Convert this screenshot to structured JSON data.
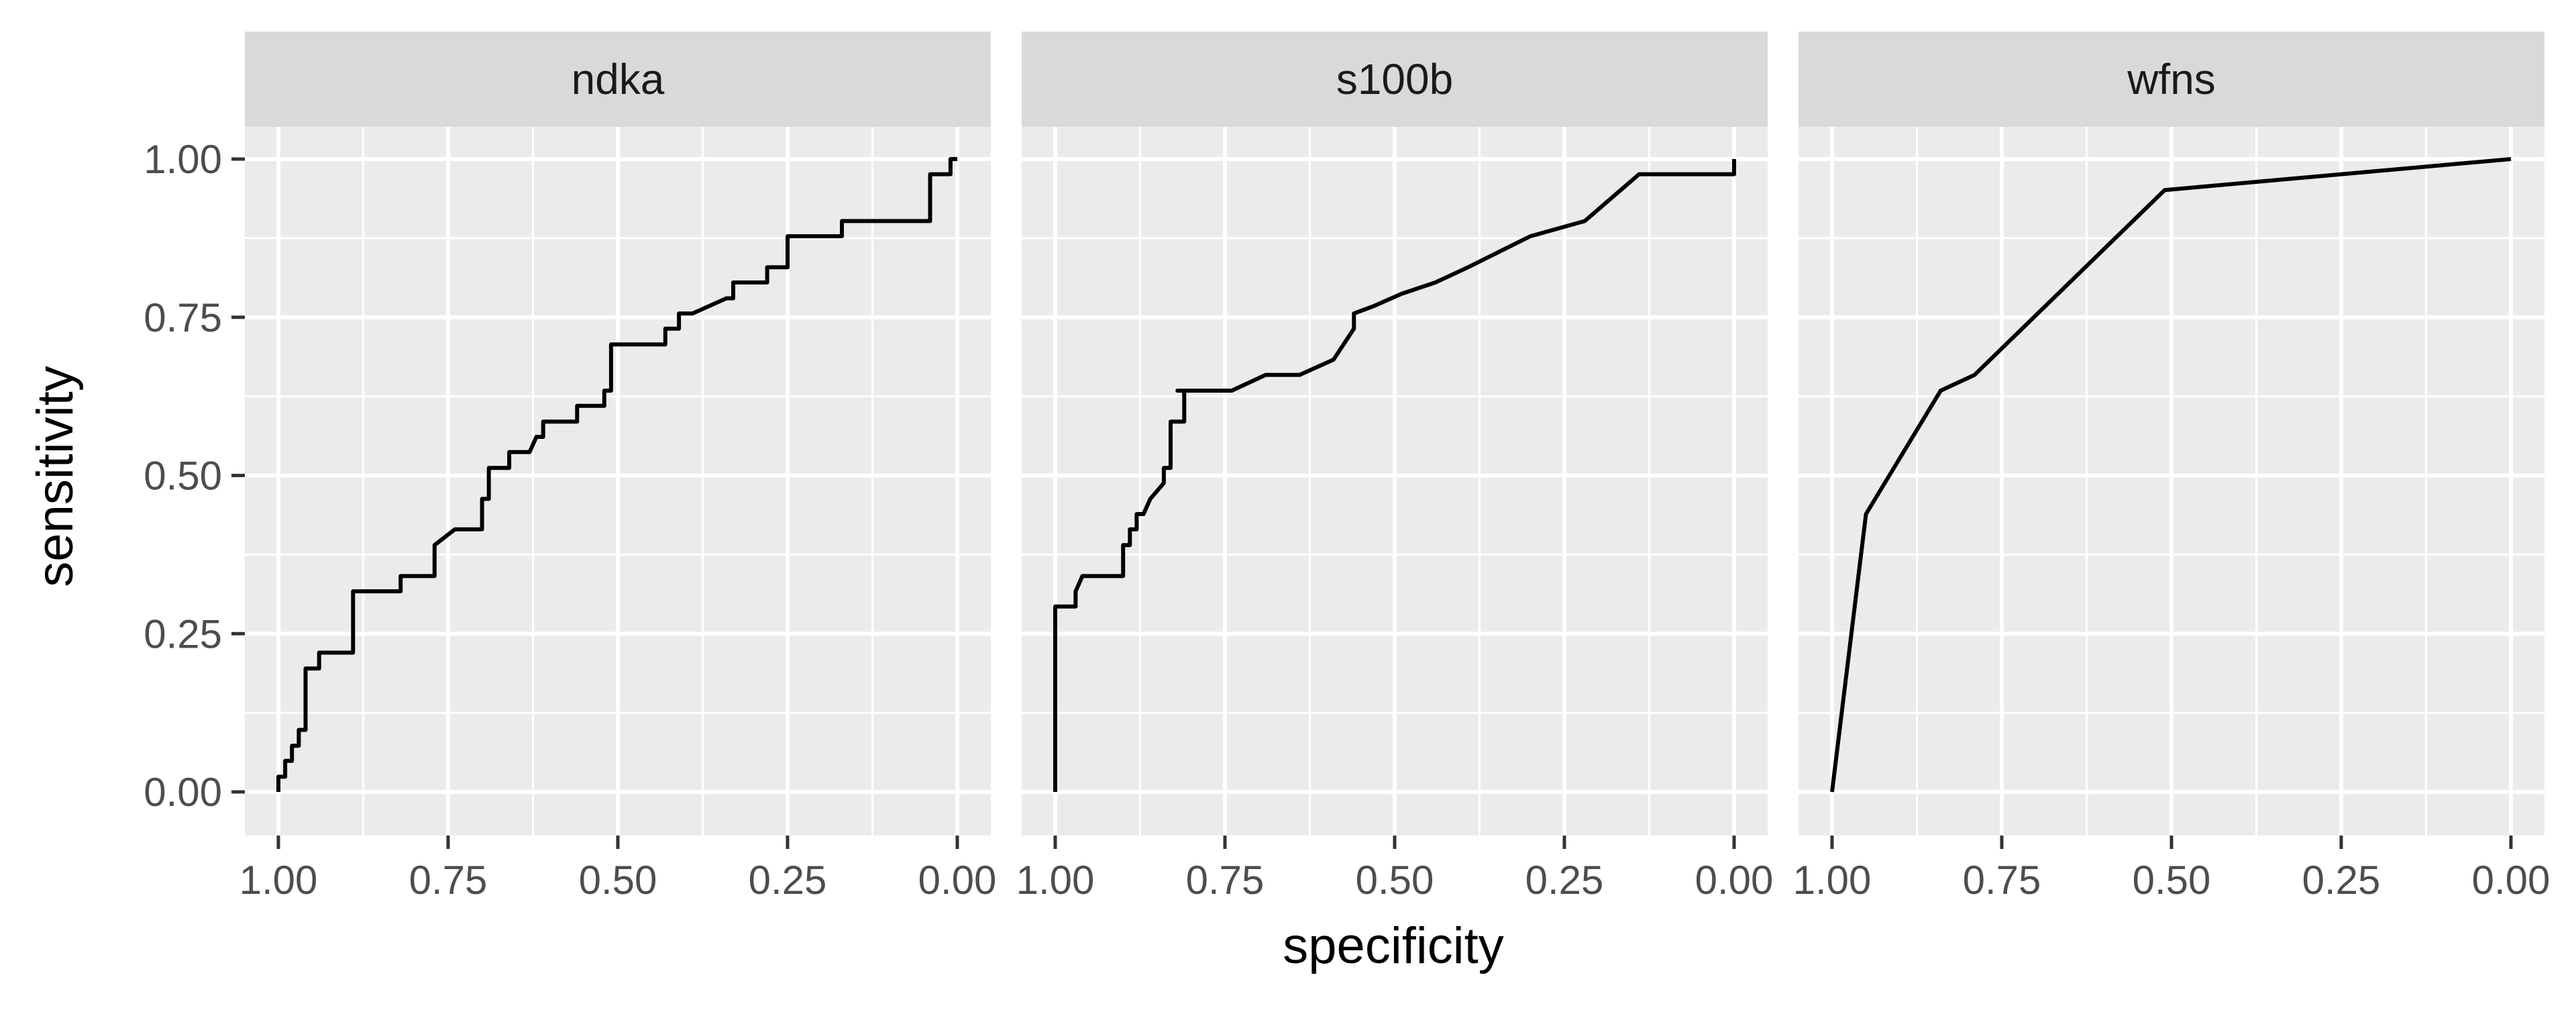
{
  "chart_data": {
    "type": "line",
    "facet_labels": [
      "ndka",
      "s100b",
      "wfns"
    ],
    "xlabel": "specificity",
    "ylabel": "sensitivity",
    "xlim": [
      1.0,
      0.0
    ],
    "x_reversed": true,
    "ylim": [
      0.0,
      1.0
    ],
    "x_ticks": [
      "1.00",
      "0.75",
      "0.50",
      "0.25",
      "0.00"
    ],
    "y_ticks": [
      "0.00",
      "0.25",
      "0.50",
      "0.75",
      "1.00"
    ],
    "grid": true,
    "line_color": "#000000",
    "panel_background": "#ebebeb",
    "strip_background": "#d9d9d9",
    "grid_color": "#ffffff",
    "series": [
      {
        "facet": "ndka",
        "x": [
          1.0,
          1.0,
          0.99,
          0.99,
          0.98,
          0.98,
          0.97,
          0.97,
          0.96,
          0.96,
          0.94,
          0.94,
          0.93,
          0.93,
          0.89,
          0.89,
          0.86,
          0.86,
          0.82,
          0.82,
          0.77,
          0.77,
          0.74,
          0.74,
          0.73,
          0.72,
          0.7,
          0.7,
          0.69,
          0.69,
          0.68,
          0.68,
          0.66,
          0.66,
          0.63,
          0.62,
          0.61,
          0.61,
          0.56,
          0.56,
          0.54,
          0.54,
          0.52,
          0.52,
          0.51,
          0.51,
          0.43,
          0.43,
          0.41,
          0.41,
          0.39,
          0.39,
          0.34,
          0.33,
          0.33,
          0.28,
          0.28,
          0.25,
          0.25,
          0.17,
          0.17,
          0.04,
          0.04,
          0.01,
          0.01,
          0.0
        ],
        "y": [
          0.0,
          0.024,
          0.024,
          0.049,
          0.049,
          0.073,
          0.073,
          0.098,
          0.098,
          0.195,
          0.195,
          0.22,
          0.22,
          0.22,
          0.22,
          0.317,
          0.317,
          0.317,
          0.317,
          0.341,
          0.341,
          0.39,
          0.415,
          0.415,
          0.415,
          0.415,
          0.415,
          0.463,
          0.463,
          0.512,
          0.512,
          0.512,
          0.512,
          0.537,
          0.537,
          0.561,
          0.561,
          0.585,
          0.585,
          0.61,
          0.61,
          0.61,
          0.61,
          0.634,
          0.634,
          0.707,
          0.707,
          0.732,
          0.732,
          0.756,
          0.756,
          0.756,
          0.78,
          0.78,
          0.805,
          0.805,
          0.829,
          0.829,
          0.878,
          0.878,
          0.902,
          0.902,
          0.976,
          0.976,
          1.0,
          1.0
        ]
      },
      {
        "facet": "s100b",
        "x": [
          1.0,
          1.0,
          0.97,
          0.97,
          0.96,
          0.94,
          0.9,
          0.9,
          0.89,
          0.89,
          0.88,
          0.88,
          0.87,
          0.87,
          0.86,
          0.84,
          0.84,
          0.83,
          0.83,
          0.82,
          0.82,
          0.81,
          0.81,
          0.82,
          0.74,
          0.69,
          0.64,
          0.59,
          0.56,
          0.56,
          0.53,
          0.49,
          0.44,
          0.39,
          0.33,
          0.3,
          0.22,
          0.14,
          0.0,
          0.0
        ],
        "y": [
          0.0,
          0.293,
          0.293,
          0.317,
          0.341,
          0.341,
          0.341,
          0.39,
          0.39,
          0.415,
          0.415,
          0.439,
          0.439,
          0.439,
          0.463,
          0.488,
          0.512,
          0.512,
          0.585,
          0.585,
          0.585,
          0.585,
          0.634,
          0.634,
          0.634,
          0.659,
          0.659,
          0.683,
          0.732,
          0.756,
          0.768,
          0.787,
          0.805,
          0.83,
          0.862,
          0.878,
          0.902,
          0.976,
          0.976,
          1.0
        ]
      },
      {
        "facet": "wfns",
        "x": [
          1.0,
          0.95,
          0.84,
          0.79,
          0.51,
          0.0
        ],
        "y": [
          0.0,
          0.439,
          0.634,
          0.659,
          0.951,
          1.0
        ]
      }
    ]
  }
}
